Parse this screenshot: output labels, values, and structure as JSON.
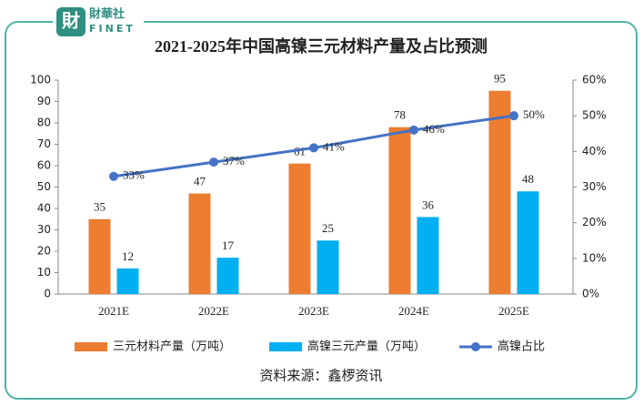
{
  "logo": {
    "name": "財華社",
    "sub": "FINET"
  },
  "source": "资料来源：鑫椤资讯",
  "chart_data": {
    "type": "bar",
    "title": "2021-2025年中国高镍三元材料产量及占比预测",
    "categories": [
      "2021E",
      "2022E",
      "2023E",
      "2024E",
      "2025E"
    ],
    "series": [
      {
        "name": "三元材料产量（万吨）",
        "color": "#ED7D31",
        "values": [
          35,
          47,
          61,
          78,
          95
        ]
      },
      {
        "name": "高镍三元产量（万吨）",
        "color": "#00B0F0",
        "values": [
          12,
          17,
          25,
          36,
          48
        ]
      },
      {
        "name": "高镍占比",
        "color": "#4472C4",
        "type": "line",
        "axis": "y2",
        "values": [
          33,
          37,
          41,
          46,
          50
        ],
        "value_labels": [
          "33%",
          "37%",
          "41%",
          "46%",
          "50%"
        ]
      }
    ],
    "ylim": [
      0,
      100
    ],
    "yticks": [
      0,
      10,
      20,
      30,
      40,
      50,
      60,
      70,
      80,
      90,
      100
    ],
    "y2lim": [
      0,
      60
    ],
    "y2ticks": [
      {
        "value": 0,
        "label": "0%"
      },
      {
        "value": 10,
        "label": "10%"
      },
      {
        "value": 20,
        "label": "20%"
      },
      {
        "value": 30,
        "label": "30%"
      },
      {
        "value": 40,
        "label": "40%"
      },
      {
        "value": 50,
        "label": "50%"
      },
      {
        "value": 60,
        "label": "60%"
      }
    ],
    "legend": "bottom",
    "grid": false
  }
}
